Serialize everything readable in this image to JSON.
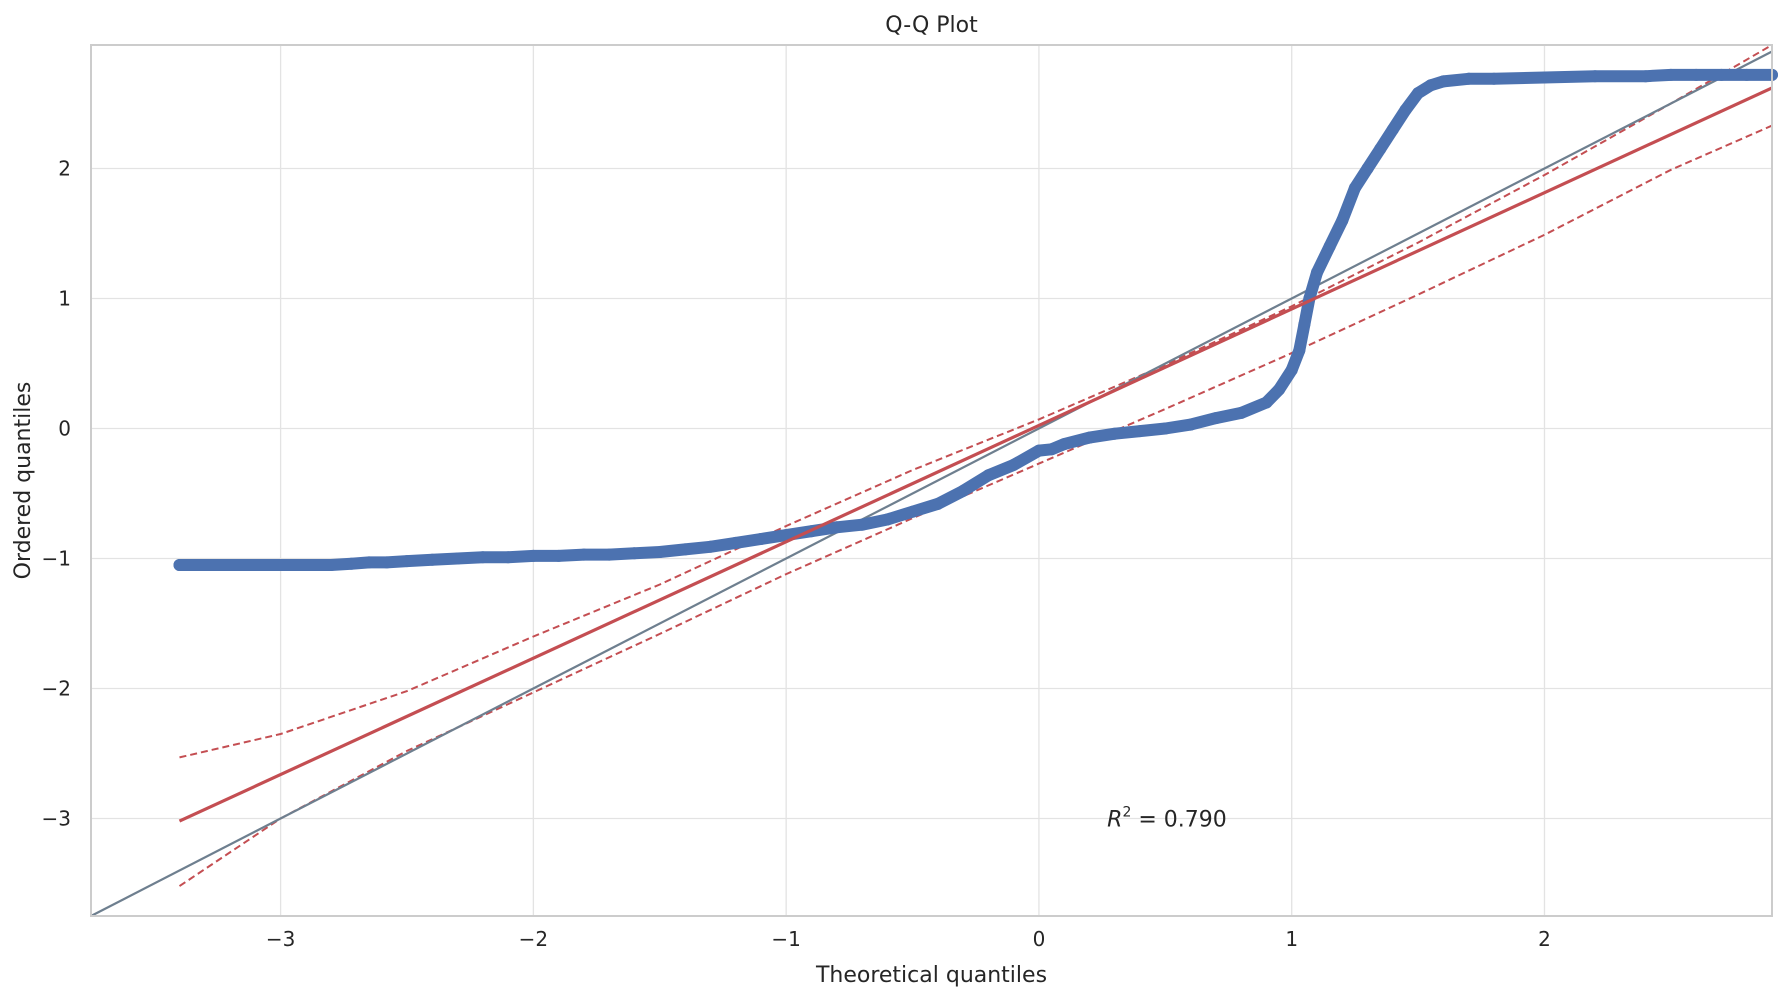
{
  "chart_data": {
    "type": "scatter",
    "title": "Q-Q Plot",
    "xlabel": "Theoretical quantiles",
    "ylabel": "Ordered quantiles",
    "xlim": [
      -3.75,
      2.9
    ],
    "ylim": [
      -3.75,
      2.95
    ],
    "x_ticks": [
      -3,
      -2,
      -1,
      0,
      1,
      2
    ],
    "y_ticks": [
      -3,
      -2,
      -1,
      0,
      1,
      2
    ],
    "x_tick_labels": [
      "−3",
      "−2",
      "−1",
      "0",
      "1",
      "2"
    ],
    "y_tick_labels": [
      "−3",
      "−2",
      "−1",
      "0",
      "1",
      "2"
    ],
    "grid": true,
    "annotation": {
      "text_prefix": "R",
      "text_sup": "2",
      "text_suffix": " = 0.790",
      "x": 0.27,
      "y": -3.0
    },
    "colors": {
      "points": "#4c72b0",
      "fit_line": "#c44e52",
      "confidence_band": "#c44e52",
      "reference_line": "#6e7f8f"
    },
    "reference_line": {
      "slope": 1,
      "intercept": 0
    },
    "fit_line": {
      "x": [
        -3.4,
        2.9
      ],
      "y": [
        -3.02,
        2.62
      ]
    },
    "confidence_band": {
      "upper": [
        [
          -3.4,
          -2.53
        ],
        [
          -3.0,
          -2.35
        ],
        [
          -2.5,
          -2.02
        ],
        [
          -2.0,
          -1.6
        ],
        [
          -1.5,
          -1.2
        ],
        [
          -1.0,
          -0.75
        ],
        [
          -0.5,
          -0.32
        ],
        [
          0.0,
          0.07
        ],
        [
          0.5,
          0.49
        ],
        [
          1.0,
          0.94
        ],
        [
          1.5,
          1.43
        ],
        [
          2.0,
          1.95
        ],
        [
          2.5,
          2.5
        ],
        [
          2.9,
          2.95
        ]
      ],
      "lower": [
        [
          -3.4,
          -3.52
        ],
        [
          -3.0,
          -3.0
        ],
        [
          -2.5,
          -2.48
        ],
        [
          -2.0,
          -2.03
        ],
        [
          -1.5,
          -1.58
        ],
        [
          -1.0,
          -1.12
        ],
        [
          -0.5,
          -0.69
        ],
        [
          0.0,
          -0.27
        ],
        [
          0.5,
          0.15
        ],
        [
          1.0,
          0.58
        ],
        [
          1.5,
          1.03
        ],
        [
          2.0,
          1.49
        ],
        [
          2.5,
          1.99
        ],
        [
          2.9,
          2.33
        ]
      ]
    },
    "series": [
      {
        "x": [
          -3.4,
          -3.15,
          -3.0,
          -2.9,
          -2.8,
          -2.72,
          -2.65,
          -2.58,
          -2.5,
          -2.4,
          -2.3,
          -2.2,
          -2.1,
          -2.0,
          -1.9,
          -1.8,
          -1.7,
          -1.6,
          -1.5,
          -1.4,
          -1.3,
          -1.2,
          -1.1,
          -1.0,
          -0.9,
          -0.8,
          -0.7,
          -0.6,
          -0.5,
          -0.4,
          -0.3,
          -0.2,
          -0.1,
          0.0,
          0.05,
          0.1,
          0.2,
          0.3,
          0.4,
          0.5,
          0.6,
          0.7,
          0.8,
          0.9,
          0.95,
          1.0,
          1.03,
          1.05,
          1.07,
          1.1,
          1.15,
          1.2,
          1.25,
          1.3,
          1.35,
          1.4,
          1.45,
          1.5,
          1.55,
          1.6,
          1.7,
          1.8,
          2.0,
          2.2,
          2.4,
          2.5,
          2.6,
          2.7,
          2.8,
          2.9
        ],
        "y": [
          -1.05,
          -1.05,
          -1.05,
          -1.05,
          -1.05,
          -1.04,
          -1.03,
          -1.03,
          -1.02,
          -1.01,
          -1.0,
          -0.99,
          -0.99,
          -0.98,
          -0.98,
          -0.97,
          -0.97,
          -0.96,
          -0.95,
          -0.93,
          -0.91,
          -0.88,
          -0.85,
          -0.82,
          -0.79,
          -0.76,
          -0.74,
          -0.7,
          -0.64,
          -0.58,
          -0.48,
          -0.36,
          -0.28,
          -0.17,
          -0.16,
          -0.12,
          -0.07,
          -0.04,
          -0.02,
          0.0,
          0.03,
          0.08,
          0.12,
          0.2,
          0.3,
          0.45,
          0.6,
          0.8,
          1.0,
          1.2,
          1.4,
          1.6,
          1.85,
          2.0,
          2.15,
          2.3,
          2.45,
          2.58,
          2.64,
          2.67,
          2.69,
          2.69,
          2.7,
          2.71,
          2.71,
          2.72,
          2.72,
          2.72,
          2.72,
          2.72
        ]
      }
    ]
  }
}
